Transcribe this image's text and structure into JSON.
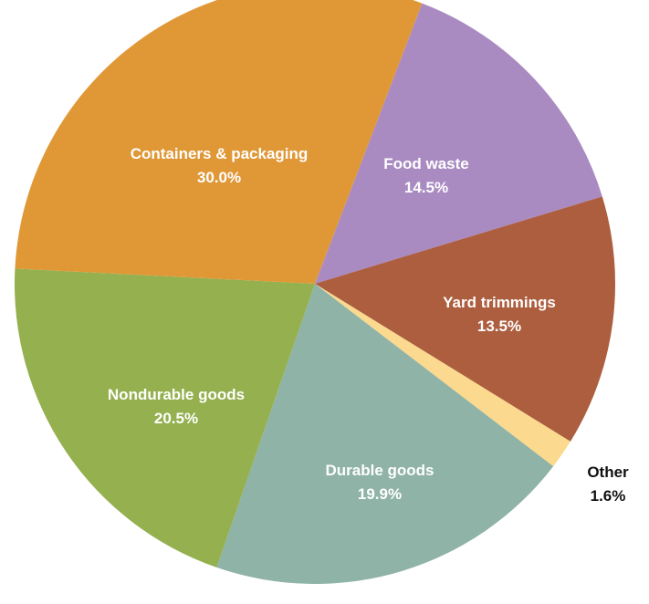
{
  "chart_data": {
    "type": "pie",
    "categories": [
      "Food waste",
      "Yard trimmings",
      "Other",
      "Durable goods",
      "Nondurable goods",
      "Containers & packaging"
    ],
    "values": [
      14.5,
      13.5,
      1.6,
      19.9,
      20.5,
      30.0
    ],
    "value_labels": [
      "14.5%",
      "13.5%",
      "1.6%",
      "19.9%",
      "20.5%",
      "30.0%"
    ],
    "colors": [
      "#a98bc2",
      "#ad5e3f",
      "#fbd98f",
      "#8fb3a6",
      "#94b04f",
      "#e09837"
    ],
    "label_colors": [
      "#ffffff",
      "#ffffff",
      "#111111",
      "#ffffff",
      "#ffffff",
      "#ffffff"
    ],
    "start_angle_deg": 20.9,
    "direction": "clockwise",
    "legend": "none"
  }
}
